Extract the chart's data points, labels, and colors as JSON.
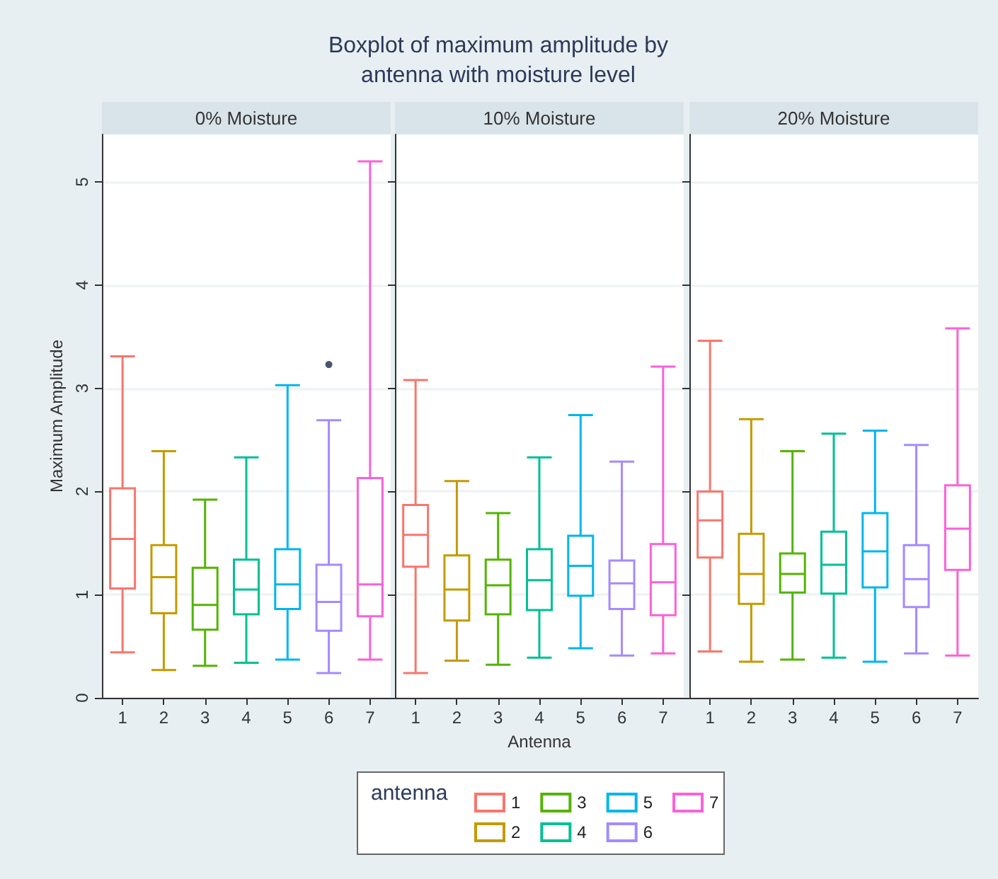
{
  "chart_data": [
    {
      "type": "box",
      "subtitle": "0% Moisture",
      "ylabel": "Maximum Amplitude",
      "categories": [
        "1",
        "2",
        "3",
        "4",
        "5",
        "6",
        "7"
      ],
      "ylim": [
        0,
        5.46
      ],
      "yticks": [
        0,
        1,
        2,
        3,
        4,
        5
      ],
      "grid": "y",
      "series": [
        {
          "color": "#f8766d",
          "boxes": [
            {
              "low": 0.44,
              "q1": 1.06,
              "median": 1.54,
              "q3": 2.03,
              "high": 3.31
            },
            null,
            null,
            null,
            null,
            null,
            null
          ]
        },
        {
          "color": "#c49a00",
          "boxes": [
            null,
            {
              "low": 0.27,
              "q1": 0.82,
              "median": 1.17,
              "q3": 1.48,
              "high": 2.39
            },
            null,
            null,
            null,
            null,
            null
          ]
        },
        {
          "color": "#53b400",
          "boxes": [
            null,
            null,
            {
              "low": 0.31,
              "q1": 0.66,
              "median": 0.9,
              "q3": 1.26,
              "high": 1.92
            },
            null,
            null,
            null,
            null
          ]
        },
        {
          "color": "#00c094",
          "boxes": [
            null,
            null,
            null,
            {
              "low": 0.34,
              "q1": 0.81,
              "median": 1.05,
              "q3": 1.34,
              "high": 2.33
            },
            null,
            null,
            null
          ]
        },
        {
          "color": "#00b6eb",
          "boxes": [
            null,
            null,
            null,
            null,
            {
              "low": 0.37,
              "q1": 0.86,
              "median": 1.1,
              "q3": 1.44,
              "high": 3.03
            },
            null,
            null
          ]
        },
        {
          "color": "#a58aff",
          "boxes": [
            null,
            null,
            null,
            null,
            null,
            {
              "low": 0.24,
              "q1": 0.65,
              "median": 0.93,
              "q3": 1.29,
              "high": 2.69,
              "outliers": [
                3.23
              ]
            },
            null
          ]
        },
        {
          "color": "#fb61d7",
          "boxes": [
            null,
            null,
            null,
            null,
            null,
            null,
            {
              "low": 0.37,
              "q1": 0.79,
              "median": 1.1,
              "q3": 2.13,
              "high": 5.2
            }
          ]
        }
      ]
    },
    {
      "type": "box",
      "title": "Boxplot of maximum amplitude by antenna with moisture level",
      "subtitle": "10% Moisture",
      "xlabel": "Antenna",
      "legend": "bottom",
      "legend_title": "antenna",
      "categories": [
        "1",
        "2",
        "3",
        "4",
        "5",
        "6",
        "7"
      ],
      "ylim": [
        0,
        5.46
      ],
      "yticks": [
        0,
        1,
        2,
        3,
        4,
        5
      ],
      "grid": "y",
      "tick_labels": "x",
      "series": [
        {
          "name": "1",
          "color": "#f8766d",
          "boxes": [
            {
              "low": 0.24,
              "q1": 1.27,
              "median": 1.58,
              "q3": 1.87,
              "high": 3.08
            },
            null,
            null,
            null,
            null,
            null,
            null
          ]
        },
        {
          "name": "2",
          "color": "#c49a00",
          "boxes": [
            null,
            {
              "low": 0.36,
              "q1": 0.75,
              "median": 1.05,
              "q3": 1.38,
              "high": 2.1
            },
            null,
            null,
            null,
            null,
            null
          ]
        },
        {
          "name": "3",
          "color": "#53b400",
          "boxes": [
            null,
            null,
            {
              "low": 0.32,
              "q1": 0.81,
              "median": 1.09,
              "q3": 1.34,
              "high": 1.79
            },
            null,
            null,
            null,
            null
          ]
        },
        {
          "name": "4",
          "color": "#00c094",
          "boxes": [
            null,
            null,
            null,
            {
              "low": 0.39,
              "q1": 0.85,
              "median": 1.14,
              "q3": 1.44,
              "high": 2.33
            },
            null,
            null,
            null
          ]
        },
        {
          "name": "5",
          "color": "#00b6eb",
          "boxes": [
            null,
            null,
            null,
            null,
            {
              "low": 0.48,
              "q1": 0.99,
              "median": 1.28,
              "q3": 1.57,
              "high": 2.74
            },
            null,
            null
          ]
        },
        {
          "name": "6",
          "color": "#a58aff",
          "boxes": [
            null,
            null,
            null,
            null,
            null,
            {
              "low": 0.41,
              "q1": 0.86,
              "median": 1.11,
              "q3": 1.33,
              "high": 2.29
            },
            null
          ]
        },
        {
          "name": "7",
          "color": "#fb61d7",
          "boxes": [
            null,
            null,
            null,
            null,
            null,
            null,
            {
              "low": 0.43,
              "q1": 0.8,
              "median": 1.12,
              "q3": 1.49,
              "high": 3.21
            }
          ]
        }
      ]
    },
    {
      "type": "box",
      "subtitle": "20% Moisture",
      "categories": [
        "1",
        "2",
        "3",
        "4",
        "5",
        "6",
        "7"
      ],
      "ylim": [
        0,
        5.46
      ],
      "yticks": [
        0,
        1,
        2,
        3,
        4,
        5
      ],
      "grid": "y",
      "tick_labels": "x",
      "series": [
        {
          "color": "#f8766d",
          "boxes": [
            {
              "low": 0.45,
              "q1": 1.36,
              "median": 1.72,
              "q3": 2.0,
              "high": 3.46
            },
            null,
            null,
            null,
            null,
            null,
            null
          ]
        },
        {
          "color": "#c49a00",
          "boxes": [
            null,
            {
              "low": 0.35,
              "q1": 0.91,
              "median": 1.2,
              "q3": 1.59,
              "high": 2.7
            },
            null,
            null,
            null,
            null,
            null
          ]
        },
        {
          "color": "#53b400",
          "boxes": [
            null,
            null,
            {
              "low": 0.37,
              "q1": 1.02,
              "median": 1.2,
              "q3": 1.4,
              "high": 2.39
            },
            null,
            null,
            null,
            null
          ]
        },
        {
          "color": "#00c094",
          "boxes": [
            null,
            null,
            null,
            {
              "low": 0.39,
              "q1": 1.01,
              "median": 1.29,
              "q3": 1.61,
              "high": 2.56
            },
            null,
            null,
            null
          ]
        },
        {
          "color": "#00b6eb",
          "boxes": [
            null,
            null,
            null,
            null,
            {
              "low": 0.35,
              "q1": 1.07,
              "median": 1.42,
              "q3": 1.79,
              "high": 2.59
            },
            null,
            null
          ]
        },
        {
          "color": "#a58aff",
          "boxes": [
            null,
            null,
            null,
            null,
            null,
            {
              "low": 0.43,
              "q1": 0.88,
              "median": 1.15,
              "q3": 1.48,
              "high": 2.45
            },
            null
          ]
        },
        {
          "color": "#fb61d7",
          "boxes": [
            null,
            null,
            null,
            null,
            null,
            null,
            {
              "low": 0.41,
              "q1": 1.24,
              "median": 1.64,
              "q3": 2.06,
              "high": 3.58
            }
          ]
        }
      ]
    }
  ]
}
